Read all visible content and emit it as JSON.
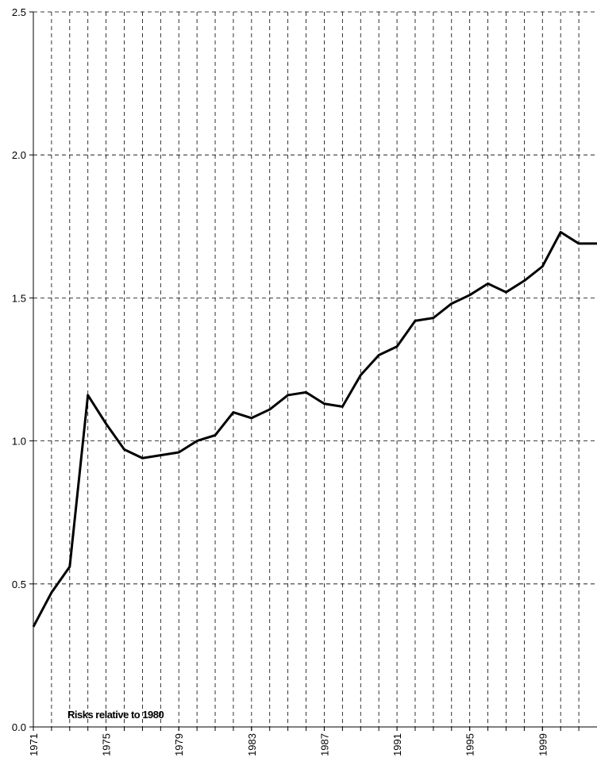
{
  "chart_data": {
    "type": "line",
    "annotation": "Risks relative to 1980",
    "x": [
      1971,
      1972,
      1973,
      1974,
      1975,
      1976,
      1977,
      1978,
      1979,
      1980,
      1981,
      1982,
      1983,
      1984,
      1985,
      1986,
      1987,
      1988,
      1989,
      1990,
      1991,
      1992,
      1993,
      1994,
      1995,
      1996,
      1997,
      1998,
      1999,
      2000,
      2001,
      2002
    ],
    "values": [
      0.35,
      0.47,
      0.56,
      1.16,
      1.06,
      0.97,
      0.94,
      0.95,
      0.96,
      1.0,
      1.02,
      1.1,
      1.08,
      1.11,
      1.16,
      1.17,
      1.13,
      1.12,
      1.23,
      1.3,
      1.33,
      1.42,
      1.43,
      1.48,
      1.51,
      1.55,
      1.52,
      1.56,
      1.61,
      1.73,
      1.69,
      1.69
    ],
    "color": "#000000",
    "xlim": [
      1971,
      2002
    ],
    "xticks": [
      1971,
      1975,
      1979,
      1983,
      1987,
      1991,
      1995,
      1999
    ],
    "xminor_ticks": [
      1972,
      1973,
      1974,
      1975,
      1976,
      1977,
      1978,
      1979,
      1980,
      1981,
      1982,
      1983,
      1984,
      1985,
      1986,
      1987,
      1988,
      1989,
      1990,
      1991,
      1992,
      1993,
      1994,
      1995,
      1996,
      1997,
      1998,
      1999,
      2000,
      2001
    ],
    "ylim": [
      0,
      2.5
    ],
    "yticks": [
      {
        "value": 0,
        "label": "0.0"
      },
      {
        "value": 0.5,
        "label": "0.5"
      },
      {
        "value": 1,
        "label": "1.0"
      },
      {
        "value": 1.5,
        "label": "1.5"
      },
      {
        "value": 2,
        "label": "2.0"
      },
      {
        "value": 2.5,
        "label": "2.5"
      }
    ],
    "grid": true
  }
}
